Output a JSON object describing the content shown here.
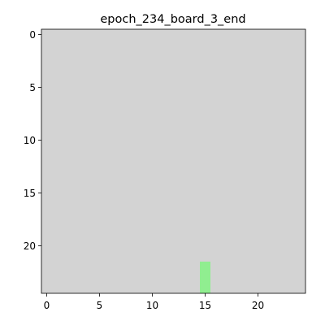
{
  "chart_data": {
    "type": "heatmap",
    "title": "epoch_234_board_3_end",
    "xlabel": "",
    "ylabel": "",
    "grid": false,
    "xlim": [
      -0.5,
      24.5
    ],
    "ylim": [
      24.5,
      -0.5
    ],
    "x_ticks": [
      0,
      5,
      10,
      15,
      20
    ],
    "y_ticks": [
      0,
      5,
      10,
      15,
      20
    ],
    "background_color": "#d3d3d3",
    "cells": [
      {
        "row": 22,
        "col": 15,
        "color": "#90ee90"
      },
      {
        "row": 23,
        "col": 15,
        "color": "#90ee90"
      },
      {
        "row": 24,
        "col": 15,
        "color": "#90ee90"
      }
    ],
    "highlight_color": "#90ee90"
  }
}
